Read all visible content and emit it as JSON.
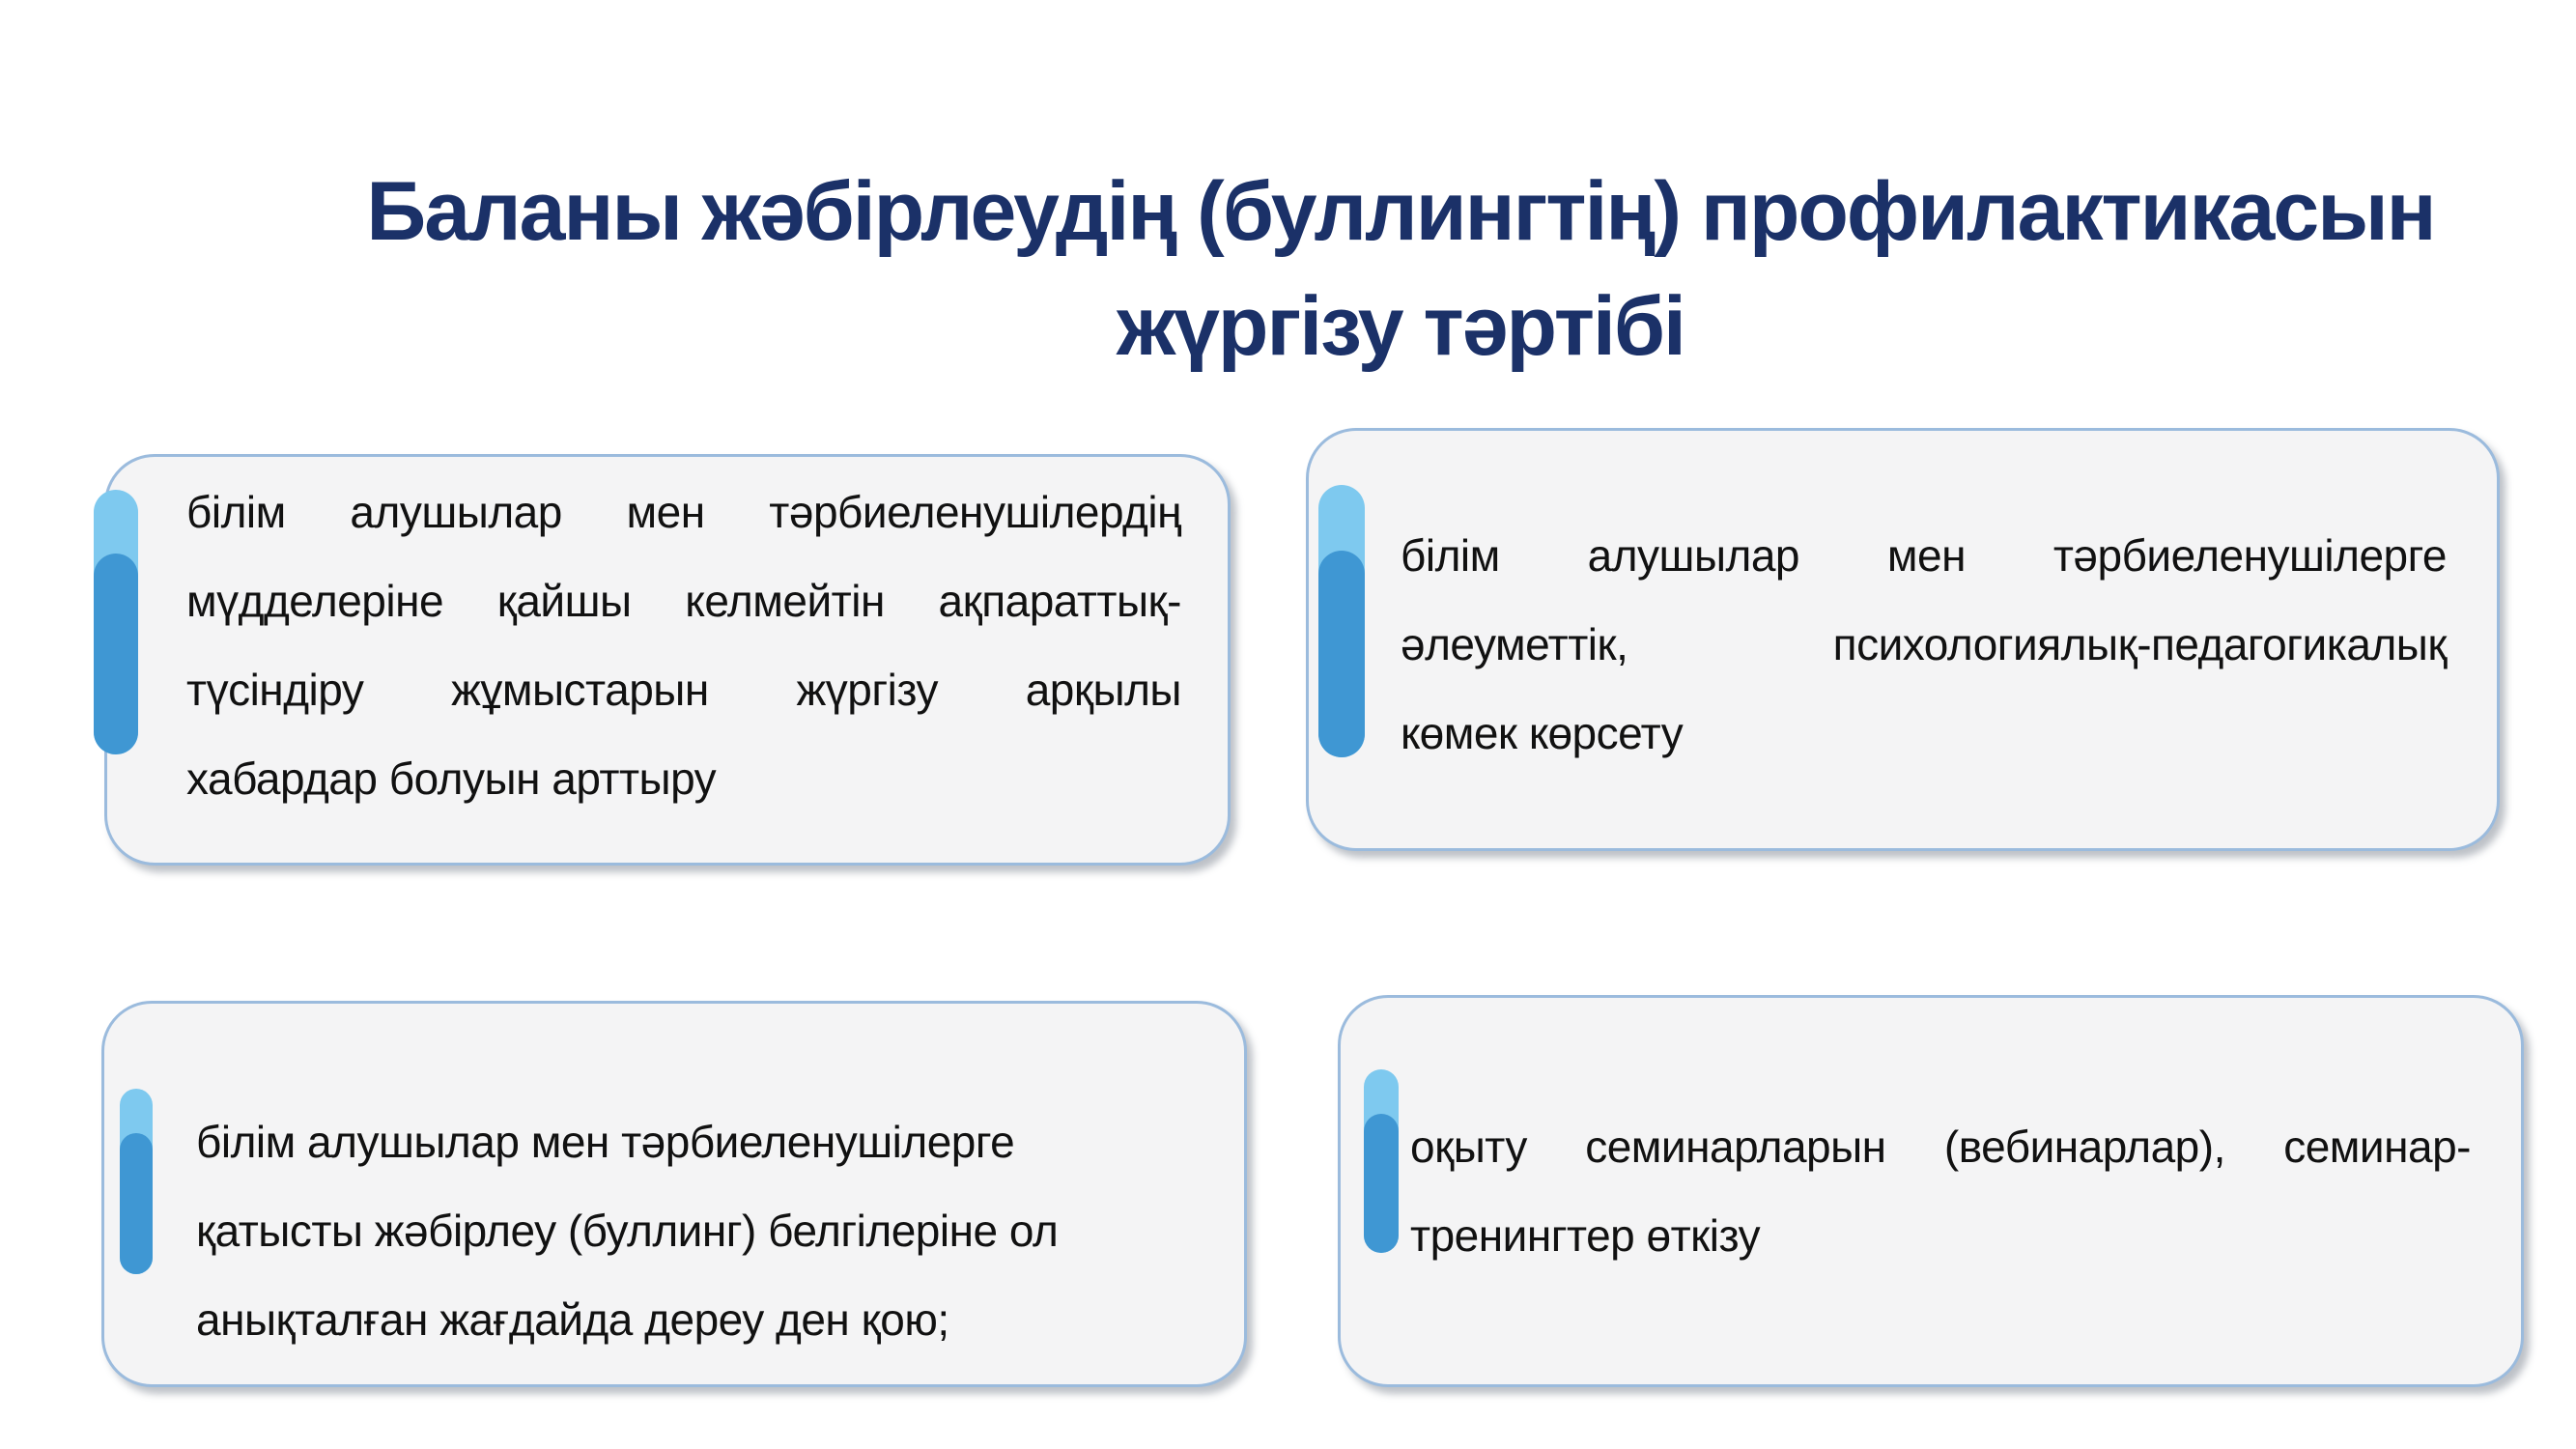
{
  "title": {
    "lines": [
      "Баланы жәбірлеудің (буллингтің) профилактикасын",
      "жүргізу тәртібі"
    ]
  },
  "cards": [
    {
      "lines": [
        "білім алушылар мен тәрбиеленушілердің",
        "мүдделеріне қайшы келмейтін ақпараттық-",
        "түсіндіру жұмыстарын жүргізу арқылы",
        "хабардар болуын арттыру"
      ]
    },
    {
      "lines": [
        "білім алушылар мен тәрбиеленушілерге",
        "әлеуметтік, психологиялық-педагогикалық",
        "көмек көрсету"
      ]
    },
    {
      "lines": [
        "білім алушылар мен тәрбиеленушілерге",
        "қатысты жәбірлеу (буллинг) белгілеріне ол",
        "анықталған жағдайда дереу ден қою;"
      ]
    },
    {
      "lines": [
        "оқыту семинарларын (вебинарлар), семинар-",
        "тренингтер өткізу"
      ]
    }
  ],
  "colors": {
    "title_text": "#1b3168",
    "body_text": "#111111",
    "card_background": "#f4f4f5",
    "card_border": "#9bbbdd",
    "accent_light": "#7ec9ef",
    "accent_dark": "#3f97d3"
  }
}
